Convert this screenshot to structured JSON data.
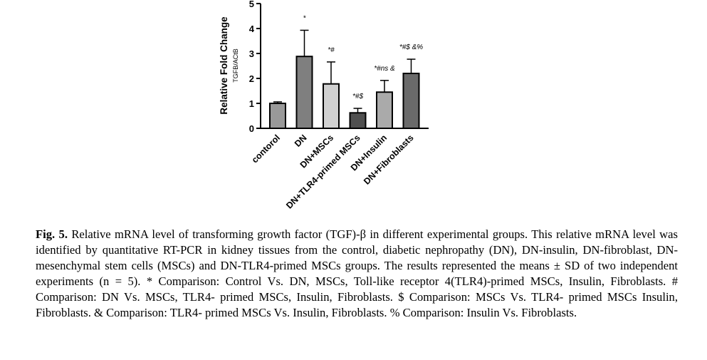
{
  "chart_data": {
    "type": "bar",
    "ylabel": "Relative Fold Change",
    "ylabel_sub": "TGFB/ACtB",
    "ylim": [
      0,
      5
    ],
    "yticks": [
      "0",
      "1",
      "2",
      "3",
      "4",
      "5"
    ],
    "categories": [
      "contorol",
      "DN",
      "DN+MSCs",
      "DN+TLR4-primed MSCs",
      "DN+Insulin",
      "DN+Fibroblasts"
    ],
    "values": [
      1.0,
      2.88,
      1.78,
      0.62,
      1.45,
      2.2
    ],
    "errors": [
      0.06,
      1.05,
      0.88,
      0.18,
      0.47,
      0.57
    ],
    "colors": [
      "#999999",
      "#7f7f7f",
      "#d0d0d0",
      "#505050",
      "#aaaaaa",
      "#6a6a6a"
    ],
    "annotations": [
      "",
      "*",
      "*#",
      "*#$",
      "*#ns &",
      "*#$ &%"
    ]
  },
  "caption": {
    "label": "Fig. 5.",
    "text": " Relative mRNA level of transforming growth factor (TGF)-β in different experimental groups. This relative mRNA level was identified by quantitative RT-PCR in kidney tissues from the control, diabetic nephropathy (DN), DN-insulin, DN-fibroblast, DN- mesenchymal stem cells (MSCs) and DN-TLR4-primed MSCs groups. The results represented the means ± SD of two independent experiments (n = 5).  * Comparison: Control Vs. DN, MSCs, Toll-like receptor 4(TLR4)-primed MSCs, Insulin, Fibroblasts. # Comparison: DN Vs. MSCs, TLR4- primed MSCs, Insulin, Fibroblasts. $ Comparison: MSCs Vs. TLR4- primed MSCs Insulin, Fibroblasts. & Comparison: TLR4- primed MSCs Vs. Insulin, Fibroblasts. % Comparison: Insulin Vs. Fibroblasts."
  }
}
